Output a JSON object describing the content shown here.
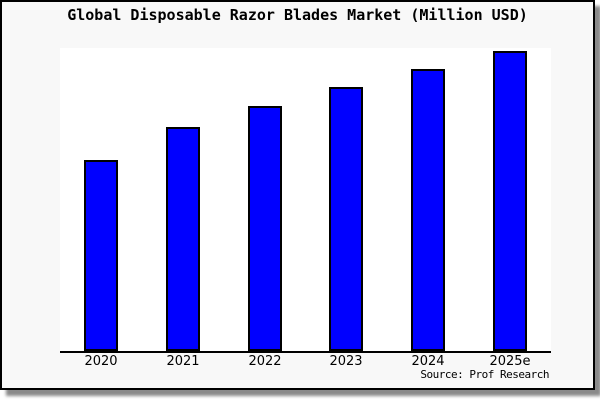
{
  "panel": {
    "background": "#f8f8f8",
    "border_color": "#000000",
    "shadow_color": "#8a8a8a",
    "plot_background": "#ffffff"
  },
  "chart_data": {
    "type": "bar",
    "title": "Global Disposable Razor Blades Market (Million USD)",
    "categories": [
      "2020",
      "2021",
      "2022",
      "2023",
      "2024",
      "2025e"
    ],
    "values": [
      63,
      74,
      81,
      87,
      93,
      99
    ],
    "ylim": [
      0,
      100
    ],
    "xlabel": "",
    "ylabel": "",
    "y_axis_labels_visible": false,
    "grid": false,
    "legend": false,
    "bar_color": "#0000ff",
    "bar_border_color": "#000000",
    "source_note": "Source: Prof Research"
  }
}
